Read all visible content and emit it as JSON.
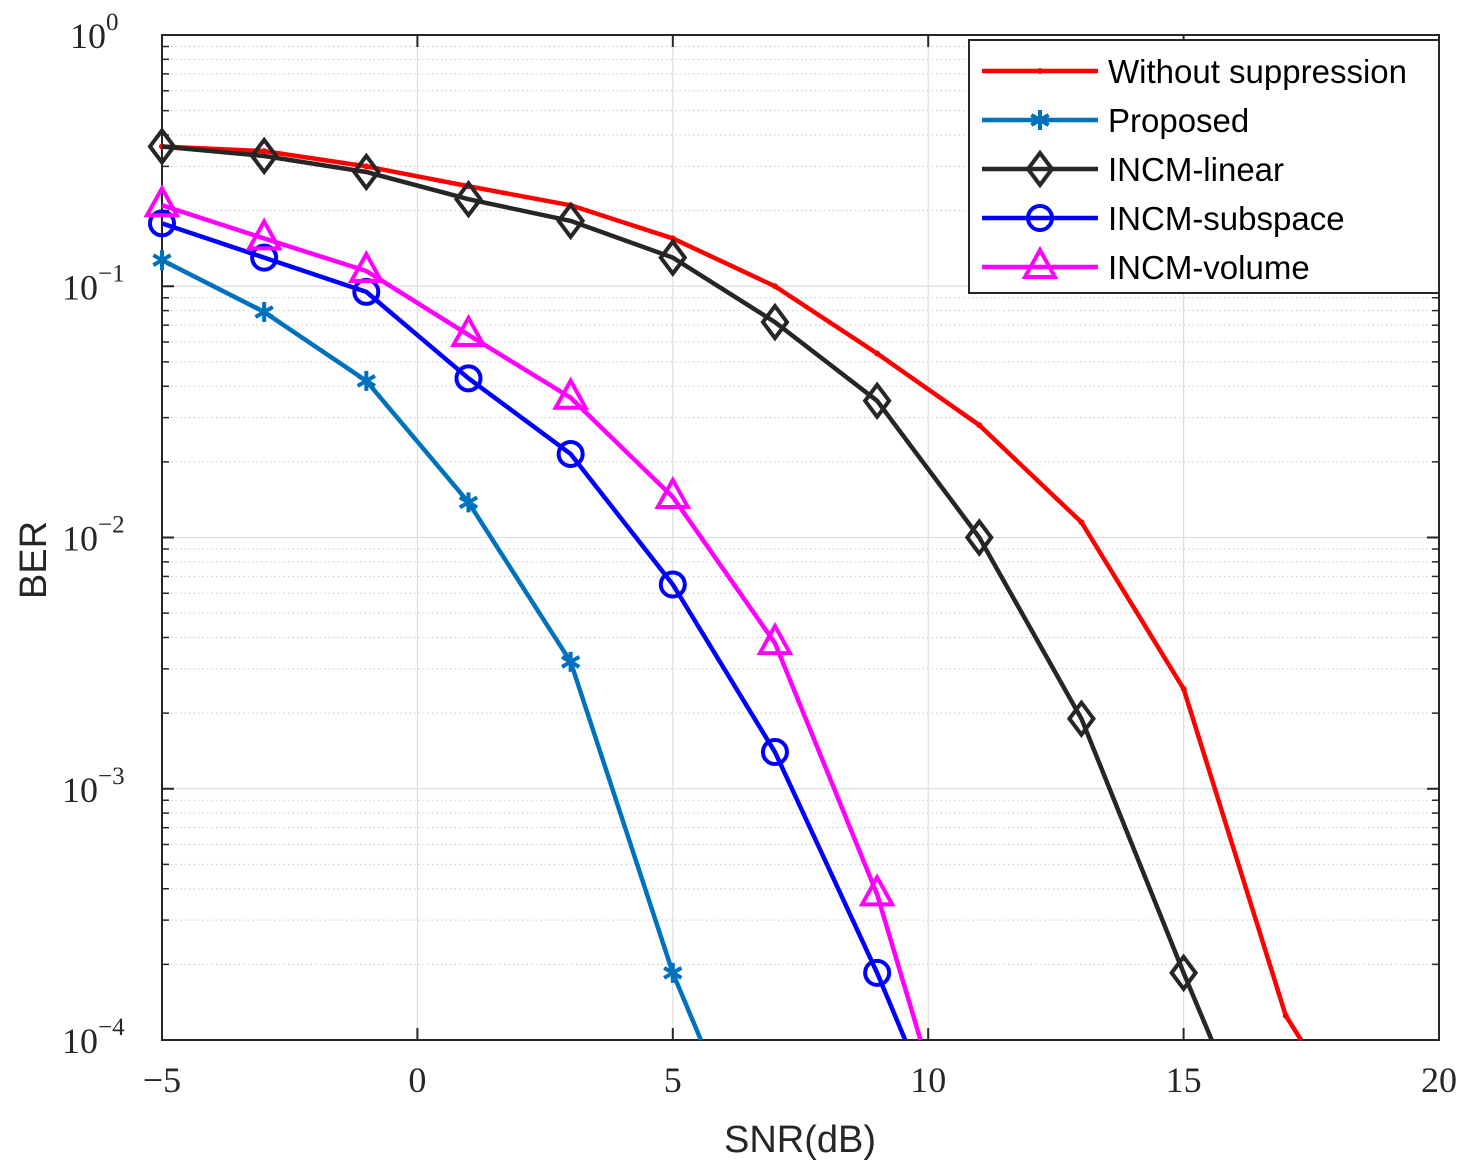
{
  "chart_data": {
    "type": "line",
    "yscale": "log",
    "xlabel": "SNR(dB)",
    "ylabel": "BER",
    "xlim": [
      -5,
      20
    ],
    "ylim": [
      0.0001,
      1
    ],
    "grid": true,
    "legend_position": "top-right",
    "x_ticks": [
      {
        "value": -5,
        "label": "−5"
      },
      {
        "value": 0,
        "label": "0"
      },
      {
        "value": 5,
        "label": "5"
      },
      {
        "value": 10,
        "label": "10"
      },
      {
        "value": 15,
        "label": "15"
      },
      {
        "value": 20,
        "label": "20"
      }
    ],
    "y_ticks": [
      {
        "value": 1,
        "base": "10",
        "exp": "0"
      },
      {
        "value": 0.1,
        "base": "10",
        "exp": "−1"
      },
      {
        "value": 0.01,
        "base": "10",
        "exp": "−2"
      },
      {
        "value": 0.001,
        "base": "10",
        "exp": "−3"
      },
      {
        "value": 0.0001,
        "base": "10",
        "exp": "−4"
      }
    ],
    "series": [
      {
        "name": "Without suppression",
        "color": "#ff0000",
        "marker": "point",
        "x": [
          -5,
          -3,
          -1,
          1,
          3,
          5,
          7,
          9,
          11,
          13,
          15,
          17,
          17.3
        ],
        "y": [
          0.36,
          0.345,
          0.3,
          0.25,
          0.21,
          0.155,
          0.1,
          0.054,
          0.028,
          0.0115,
          0.0025,
          0.000125,
          0.0001
        ]
      },
      {
        "name": "Proposed",
        "color": "#0072bd",
        "marker": "asterisk",
        "x": [
          -5,
          -3,
          -1,
          1,
          3,
          5,
          5.55
        ],
        "y": [
          0.127,
          0.079,
          0.042,
          0.0138,
          0.0032,
          0.000185,
          0.0001
        ]
      },
      {
        "name": "INCM-linear",
        "color": "#262626",
        "marker": "diamond",
        "x": [
          -5,
          -3,
          -1,
          1,
          3,
          5,
          7,
          9,
          11,
          13,
          15,
          15.55
        ],
        "y": [
          0.36,
          0.33,
          0.285,
          0.222,
          0.182,
          0.13,
          0.072,
          0.035,
          0.01,
          0.0019,
          0.000185,
          0.0001
        ]
      },
      {
        "name": "INCM-subspace",
        "color": "#0000ff",
        "marker": "circle",
        "x": [
          -5,
          -3,
          -1,
          1,
          3,
          5,
          7,
          9,
          9.55
        ],
        "y": [
          0.178,
          0.13,
          0.095,
          0.043,
          0.0215,
          0.0065,
          0.0014,
          0.000185,
          0.0001
        ]
      },
      {
        "name": "INCM-volume",
        "color": "#ff00ff",
        "marker": "triangle",
        "x": [
          -5,
          -3,
          -1,
          1,
          3,
          5,
          7,
          9,
          9.85
        ],
        "y": [
          0.21,
          0.155,
          0.115,
          0.064,
          0.036,
          0.0145,
          0.0038,
          0.00038,
          0.0001
        ]
      }
    ]
  }
}
